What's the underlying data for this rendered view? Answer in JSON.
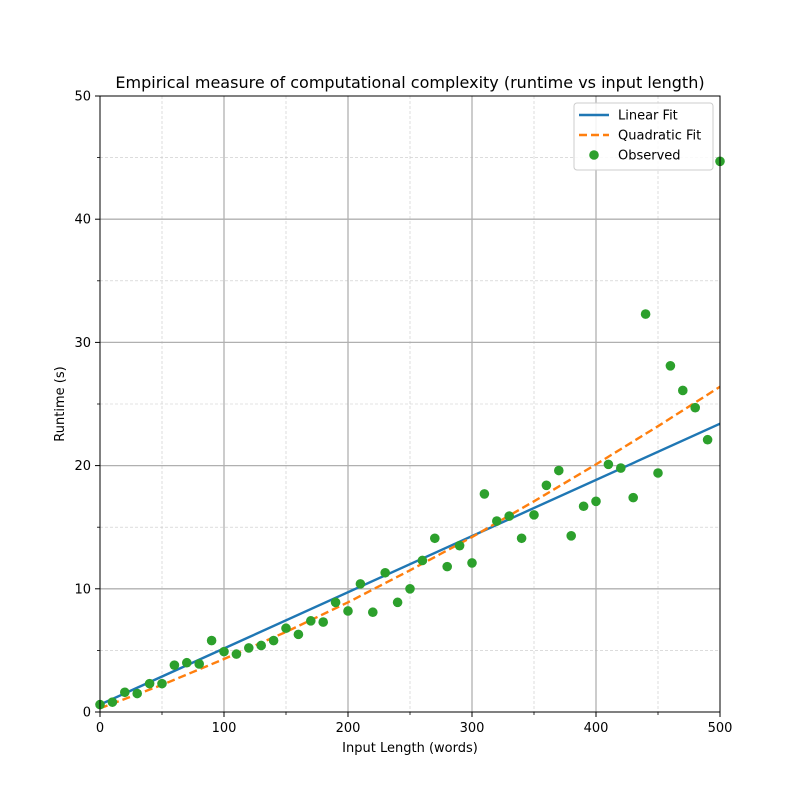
{
  "chart_data": {
    "type": "scatter",
    "title": "Empirical measure of computational complexity (runtime vs input length)",
    "xlabel": "Input Length (words)",
    "ylabel": "Runtime (s)",
    "xlim": [
      0,
      500
    ],
    "ylim": [
      0,
      50
    ],
    "xticks": [
      "0",
      "100",
      "200",
      "300",
      "400",
      "500"
    ],
    "yticks": [
      "0",
      "10",
      "20",
      "30",
      "40",
      "50"
    ],
    "grid": true,
    "legend_position": "top-right",
    "series": [
      {
        "name": "Linear Fit",
        "kind": "line",
        "style": "solid",
        "color": "#1f77b4",
        "x": [
          0,
          500
        ],
        "y": [
          0.6,
          23.4
        ]
      },
      {
        "name": "Quadratic Fit",
        "kind": "line",
        "style": "dashed",
        "color": "#ff7f0e",
        "x": [
          0,
          50,
          100,
          150,
          200,
          250,
          300,
          350,
          400,
          450,
          500
        ],
        "y": [
          0.3,
          2.2,
          4.3,
          6.5,
          8.9,
          11.5,
          14.2,
          17.1,
          20.1,
          23.2,
          26.4
        ]
      },
      {
        "name": "Observed",
        "kind": "scatter",
        "color": "#2ca02c",
        "x": [
          0,
          10,
          20,
          30,
          40,
          50,
          60,
          70,
          80,
          90,
          100,
          110,
          120,
          130,
          140,
          150,
          160,
          170,
          180,
          190,
          200,
          210,
          220,
          230,
          240,
          250,
          260,
          270,
          280,
          290,
          300,
          310,
          320,
          330,
          340,
          350,
          360,
          370,
          380,
          390,
          400,
          410,
          420,
          430,
          440,
          450,
          460,
          470,
          480,
          490,
          500
        ],
        "y": [
          0.6,
          0.8,
          1.6,
          1.5,
          2.3,
          2.3,
          3.8,
          4.0,
          3.9,
          5.8,
          4.9,
          4.7,
          5.2,
          5.4,
          5.8,
          6.8,
          6.3,
          7.4,
          7.3,
          8.9,
          8.2,
          10.4,
          8.1,
          11.3,
          8.9,
          10.0,
          12.3,
          14.1,
          11.8,
          13.5,
          12.1,
          17.7,
          15.5,
          15.9,
          14.1,
          16.0,
          18.4,
          19.6,
          14.3,
          16.7,
          17.1,
          20.1,
          19.8,
          17.4,
          32.3,
          19.4,
          28.1,
          26.1,
          24.7,
          22.1,
          44.7
        ]
      }
    ]
  }
}
